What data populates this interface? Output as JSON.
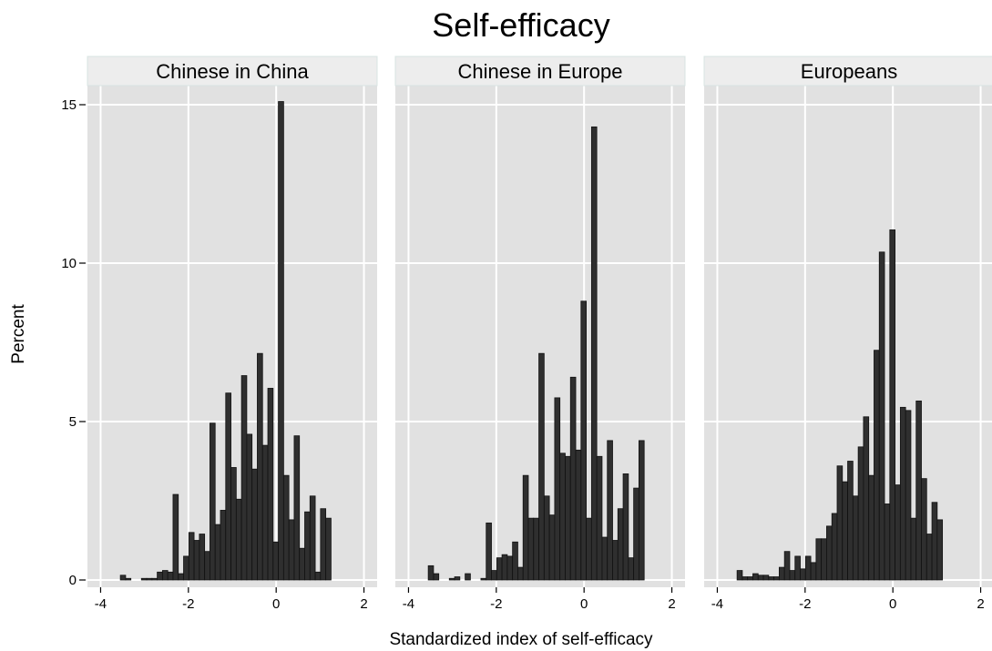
{
  "chart_data": {
    "type": "bar",
    "title": "Self-efficacy",
    "xlabel": "Standardized index of self-efficacy",
    "ylabel": "Percent",
    "xlim": [
      -4.3,
      2.3
    ],
    "ylim": [
      0,
      15.6
    ],
    "x_ticks": [
      -4,
      -2,
      0,
      2
    ],
    "x_tick_labels": [
      "-4",
      "-2",
      "0",
      "2"
    ],
    "y_ticks": [
      0,
      5,
      10,
      15
    ],
    "y_tick_labels": [
      "0",
      "5",
      "10",
      "15"
    ],
    "grid": true,
    "bar_color": "#2f2f2f",
    "panel_background": "#e1e1e1",
    "strip_background": "#ededed",
    "panels": [
      {
        "name": "Chinese in China",
        "bins": [
          {
            "x0": -3.55,
            "x1": -3.43,
            "y": 0.15
          },
          {
            "x0": -3.43,
            "x1": -3.31,
            "y": 0.05
          },
          {
            "x0": -3.07,
            "x1": -2.95,
            "y": 0.05
          },
          {
            "x0": -2.95,
            "x1": -2.83,
            "y": 0.05
          },
          {
            "x0": -2.83,
            "x1": -2.71,
            "y": 0.05
          },
          {
            "x0": -2.71,
            "x1": -2.59,
            "y": 0.25
          },
          {
            "x0": -2.59,
            "x1": -2.47,
            "y": 0.3
          },
          {
            "x0": -2.47,
            "x1": -2.35,
            "y": 0.25
          },
          {
            "x0": -2.35,
            "x1": -2.23,
            "y": 2.7
          },
          {
            "x0": -2.23,
            "x1": -2.11,
            "y": 0.2
          },
          {
            "x0": -2.11,
            "x1": -1.99,
            "y": 0.75
          },
          {
            "x0": -1.99,
            "x1": -1.87,
            "y": 1.5
          },
          {
            "x0": -1.87,
            "x1": -1.75,
            "y": 1.25
          },
          {
            "x0": -1.75,
            "x1": -1.63,
            "y": 1.45
          },
          {
            "x0": -1.63,
            "x1": -1.51,
            "y": 0.9
          },
          {
            "x0": -1.51,
            "x1": -1.39,
            "y": 4.95
          },
          {
            "x0": -1.39,
            "x1": -1.27,
            "y": 1.75
          },
          {
            "x0": -1.27,
            "x1": -1.15,
            "y": 2.2
          },
          {
            "x0": -1.15,
            "x1": -1.03,
            "y": 5.9
          },
          {
            "x0": -1.03,
            "x1": -0.91,
            "y": 3.55
          },
          {
            "x0": -0.91,
            "x1": -0.79,
            "y": 2.55
          },
          {
            "x0": -0.79,
            "x1": -0.67,
            "y": 6.45
          },
          {
            "x0": -0.67,
            "x1": -0.55,
            "y": 4.6
          },
          {
            "x0": -0.55,
            "x1": -0.43,
            "y": 3.5
          },
          {
            "x0": -0.43,
            "x1": -0.31,
            "y": 7.15
          },
          {
            "x0": -0.31,
            "x1": -0.19,
            "y": 4.25
          },
          {
            "x0": -0.19,
            "x1": -0.07,
            "y": 6.05
          },
          {
            "x0": -0.07,
            "x1": 0.05,
            "y": 1.2
          },
          {
            "x0": 0.05,
            "x1": 0.17,
            "y": 15.1
          },
          {
            "x0": 0.17,
            "x1": 0.29,
            "y": 3.3
          },
          {
            "x0": 0.29,
            "x1": 0.41,
            "y": 1.9
          },
          {
            "x0": 0.41,
            "x1": 0.53,
            "y": 4.55
          },
          {
            "x0": 0.53,
            "x1": 0.65,
            "y": 1.0
          },
          {
            "x0": 0.65,
            "x1": 0.77,
            "y": 2.15
          },
          {
            "x0": 0.77,
            "x1": 0.89,
            "y": 2.65
          },
          {
            "x0": 0.89,
            "x1": 1.01,
            "y": 0.25
          },
          {
            "x0": 1.01,
            "x1": 1.13,
            "y": 2.25
          },
          {
            "x0": 1.13,
            "x1": 1.25,
            "y": 1.95
          }
        ]
      },
      {
        "name": "Chinese in Europe",
        "bins": [
          {
            "x0": -3.55,
            "x1": -3.43,
            "y": 0.45
          },
          {
            "x0": -3.43,
            "x1": -3.31,
            "y": 0.2
          },
          {
            "x0": -3.07,
            "x1": -2.95,
            "y": 0.05
          },
          {
            "x0": -2.95,
            "x1": -2.83,
            "y": 0.1
          },
          {
            "x0": -2.71,
            "x1": -2.59,
            "y": 0.2
          },
          {
            "x0": -2.35,
            "x1": -2.23,
            "y": 0.05
          },
          {
            "x0": -2.23,
            "x1": -2.11,
            "y": 1.8
          },
          {
            "x0": -2.11,
            "x1": -1.99,
            "y": 0.3
          },
          {
            "x0": -1.99,
            "x1": -1.87,
            "y": 0.7
          },
          {
            "x0": -1.87,
            "x1": -1.75,
            "y": 0.8
          },
          {
            "x0": -1.75,
            "x1": -1.63,
            "y": 0.75
          },
          {
            "x0": -1.63,
            "x1": -1.51,
            "y": 1.2
          },
          {
            "x0": -1.51,
            "x1": -1.39,
            "y": 0.4
          },
          {
            "x0": -1.39,
            "x1": -1.27,
            "y": 3.3
          },
          {
            "x0": -1.27,
            "x1": -1.15,
            "y": 1.95
          },
          {
            "x0": -1.15,
            "x1": -1.03,
            "y": 1.95
          },
          {
            "x0": -1.03,
            "x1": -0.91,
            "y": 7.15
          },
          {
            "x0": -0.91,
            "x1": -0.79,
            "y": 2.65
          },
          {
            "x0": -0.79,
            "x1": -0.67,
            "y": 2.05
          },
          {
            "x0": -0.67,
            "x1": -0.55,
            "y": 5.75
          },
          {
            "x0": -0.55,
            "x1": -0.43,
            "y": 4.0
          },
          {
            "x0": -0.43,
            "x1": -0.31,
            "y": 3.9
          },
          {
            "x0": -0.31,
            "x1": -0.19,
            "y": 6.4
          },
          {
            "x0": -0.19,
            "x1": -0.07,
            "y": 4.1
          },
          {
            "x0": -0.07,
            "x1": 0.05,
            "y": 8.8
          },
          {
            "x0": 0.05,
            "x1": 0.17,
            "y": 1.95
          },
          {
            "x0": 0.17,
            "x1": 0.29,
            "y": 14.3
          },
          {
            "x0": 0.29,
            "x1": 0.41,
            "y": 3.9
          },
          {
            "x0": 0.41,
            "x1": 0.53,
            "y": 1.35
          },
          {
            "x0": 0.53,
            "x1": 0.65,
            "y": 4.4
          },
          {
            "x0": 0.65,
            "x1": 0.77,
            "y": 1.25
          },
          {
            "x0": 0.77,
            "x1": 0.89,
            "y": 2.25
          },
          {
            "x0": 0.89,
            "x1": 1.01,
            "y": 3.35
          },
          {
            "x0": 1.01,
            "x1": 1.13,
            "y": 0.7
          },
          {
            "x0": 1.13,
            "x1": 1.25,
            "y": 2.9
          },
          {
            "x0": 1.25,
            "x1": 1.37,
            "y": 4.4
          }
        ]
      },
      {
        "name": "Europeans",
        "bins": [
          {
            "x0": -3.55,
            "x1": -3.43,
            "y": 0.3
          },
          {
            "x0": -3.43,
            "x1": -3.31,
            "y": 0.1
          },
          {
            "x0": -3.31,
            "x1": -3.19,
            "y": 0.1
          },
          {
            "x0": -3.19,
            "x1": -3.07,
            "y": 0.2
          },
          {
            "x0": -3.07,
            "x1": -2.95,
            "y": 0.15
          },
          {
            "x0": -2.95,
            "x1": -2.83,
            "y": 0.15
          },
          {
            "x0": -2.83,
            "x1": -2.71,
            "y": 0.1
          },
          {
            "x0": -2.71,
            "x1": -2.59,
            "y": 0.1
          },
          {
            "x0": -2.59,
            "x1": -2.47,
            "y": 0.4
          },
          {
            "x0": -2.47,
            "x1": -2.35,
            "y": 0.9
          },
          {
            "x0": -2.35,
            "x1": -2.23,
            "y": 0.3
          },
          {
            "x0": -2.23,
            "x1": -2.11,
            "y": 0.75
          },
          {
            "x0": -2.11,
            "x1": -1.99,
            "y": 0.35
          },
          {
            "x0": -1.99,
            "x1": -1.87,
            "y": 0.75
          },
          {
            "x0": -1.87,
            "x1": -1.75,
            "y": 0.55
          },
          {
            "x0": -1.75,
            "x1": -1.63,
            "y": 1.3
          },
          {
            "x0": -1.63,
            "x1": -1.51,
            "y": 1.3
          },
          {
            "x0": -1.51,
            "x1": -1.39,
            "y": 1.7
          },
          {
            "x0": -1.39,
            "x1": -1.27,
            "y": 2.1
          },
          {
            "x0": -1.27,
            "x1": -1.15,
            "y": 3.6
          },
          {
            "x0": -1.15,
            "x1": -1.03,
            "y": 3.1
          },
          {
            "x0": -1.03,
            "x1": -0.91,
            "y": 3.75
          },
          {
            "x0": -0.91,
            "x1": -0.79,
            "y": 2.65
          },
          {
            "x0": -0.79,
            "x1": -0.67,
            "y": 4.2
          },
          {
            "x0": -0.67,
            "x1": -0.55,
            "y": 5.15
          },
          {
            "x0": -0.55,
            "x1": -0.43,
            "y": 3.3
          },
          {
            "x0": -0.43,
            "x1": -0.31,
            "y": 7.25
          },
          {
            "x0": -0.31,
            "x1": -0.19,
            "y": 10.35
          },
          {
            "x0": -0.19,
            "x1": -0.07,
            "y": 2.4
          },
          {
            "x0": -0.07,
            "x1": 0.05,
            "y": 11.05
          },
          {
            "x0": 0.05,
            "x1": 0.17,
            "y": 3.0
          },
          {
            "x0": 0.17,
            "x1": 0.29,
            "y": 5.45
          },
          {
            "x0": 0.29,
            "x1": 0.41,
            "y": 5.35
          },
          {
            "x0": 0.41,
            "x1": 0.53,
            "y": 1.95
          },
          {
            "x0": 0.53,
            "x1": 0.65,
            "y": 5.65
          },
          {
            "x0": 0.65,
            "x1": 0.77,
            "y": 3.2
          },
          {
            "x0": 0.77,
            "x1": 0.89,
            "y": 1.45
          },
          {
            "x0": 0.89,
            "x1": 1.01,
            "y": 2.45
          },
          {
            "x0": 1.01,
            "x1": 1.13,
            "y": 1.9
          }
        ]
      }
    ]
  }
}
